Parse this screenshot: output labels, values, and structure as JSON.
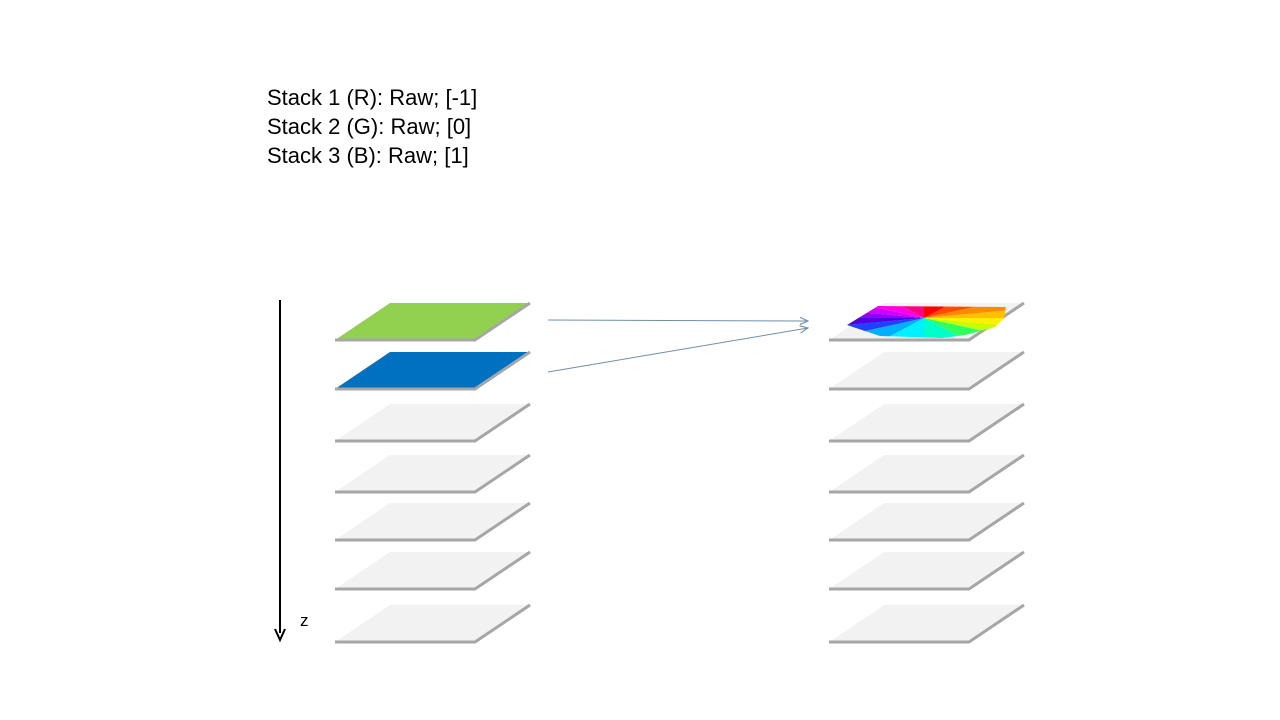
{
  "legend": {
    "lines": [
      "Stack 1 (R): Raw; [-1]",
      "Stack 2 (G): Raw; [0]",
      "Stack 3 (B): Raw; [1]"
    ]
  },
  "axis": {
    "label": "z"
  },
  "stacks": {
    "input": {
      "slice_count": 7,
      "highlighted": [
        {
          "index": 0,
          "color": "#92D050"
        },
        {
          "index": 1,
          "color": "#0070C0"
        }
      ]
    },
    "output": {
      "slice_count": 7,
      "highlighted": [
        {
          "index": 0,
          "fill": "color-wheel"
        }
      ]
    }
  },
  "colors": {
    "slice_fill": "#F2F2F2",
    "slice_edge": "#A6A6A6",
    "arrow": "#6E8FAE",
    "axis": "#000000"
  }
}
